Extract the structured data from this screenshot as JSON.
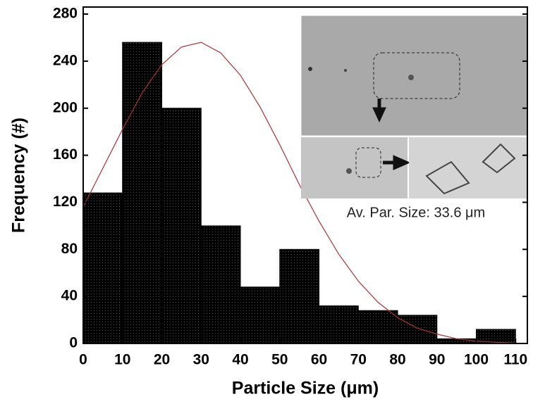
{
  "chart_data": {
    "type": "histogram",
    "x_label": "Particle Size (μm)",
    "y_label": "Frequency (#)",
    "bins": [
      0,
      10,
      20,
      30,
      40,
      50,
      60,
      70,
      80,
      90,
      100,
      110
    ],
    "values": [
      128,
      256,
      200,
      100,
      48,
      80,
      32,
      28,
      24,
      4,
      12
    ],
    "color": "#000000",
    "fit_curve": {
      "x": [
        0,
        5,
        10,
        15,
        20,
        25,
        30,
        35,
        40,
        45,
        50,
        55,
        60,
        65,
        70,
        75,
        80,
        85,
        90,
        95,
        100,
        105,
        110
      ],
      "values": [
        116,
        149,
        182,
        213,
        237,
        252,
        256,
        247,
        228,
        201,
        169,
        135,
        104,
        76,
        53,
        35,
        22,
        13,
        8,
        4,
        2,
        1,
        0.5
      ],
      "color": "#b03030"
    },
    "annotation": "Av. Par. Size: 33.6 μm",
    "xlim": [
      0,
      113
    ],
    "ylim": [
      0,
      286
    ],
    "xticks": [
      0,
      10,
      20,
      30,
      40,
      50,
      60,
      70,
      80,
      90,
      100,
      110
    ],
    "yticks": [
      0,
      40,
      80,
      120,
      160,
      200,
      240,
      280
    ]
  }
}
